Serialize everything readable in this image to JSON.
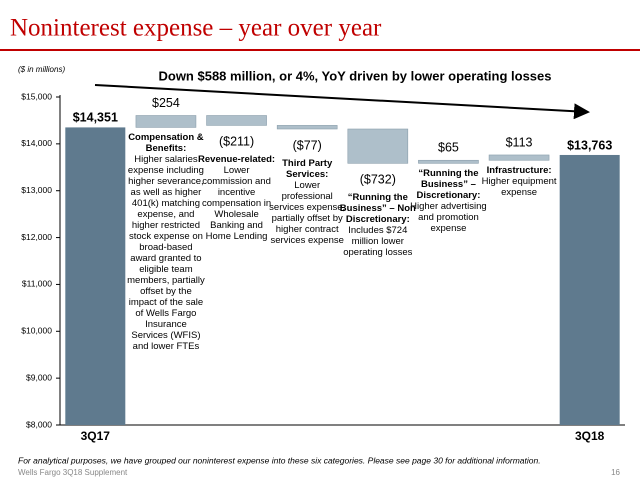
{
  "chart_data": {
    "type": "waterfall",
    "title": "Noninterest expense – year over year",
    "subtitle": "($ in millions)",
    "annotation": "Down $588 million, or 4%, YoY driven by lower operating losses",
    "categories": [
      "3Q17",
      "Compensation & Benefits:",
      "Revenue-related:",
      "Third Party Services:",
      "“Running the Business” – Non Discretionary:",
      "“Running the Business” – Discretionary:",
      "Infrastructure:",
      "3Q18"
    ],
    "descriptions": [
      null,
      "Higher salaries expense including higher severance, as well as higher 401(k) matching expense, and higher restricted stock expense on broad-based award granted to eligible team members, partially offset by the impact of the sale of Wells Fargo Insurance Services (WFIS) and lower FTEs",
      "Lower commission and incentive compensation in Wholesale Banking and Home Lending",
      "Lower professional services expense, partially offset by higher contract services expense",
      "Includes $724 million lower operating losses",
      "Higher advertising and promotion expense",
      "Higher equipment expense",
      null
    ],
    "measure": [
      "absolute",
      "relative",
      "relative",
      "relative",
      "relative",
      "relative",
      "relative",
      "absolute"
    ],
    "values": [
      14351,
      254,
      -211,
      -77,
      -732,
      65,
      113,
      13763
    ],
    "value_labels": [
      "$14,351",
      "$254",
      "($211)",
      "($77)",
      "($732)",
      "$65",
      "$113",
      "$13,763"
    ],
    "total_color": "#5f7a8e",
    "delta_color": "#aebfca",
    "ylim": [
      8000,
      15000
    ],
    "yticks": [
      {
        "value": 8000,
        "label": "$8,000"
      },
      {
        "value": 9000,
        "label": "$9,000"
      },
      {
        "value": 10000,
        "label": "$10,000"
      },
      {
        "value": 11000,
        "label": "$11,000"
      },
      {
        "value": 12000,
        "label": "$12,000"
      },
      {
        "value": 13000,
        "label": "$13,000"
      },
      {
        "value": 14000,
        "label": "$14,000"
      },
      {
        "value": 15000,
        "label": "$15,000"
      }
    ],
    "footnote": "For analytical purposes, we have grouped our noninterest expense into these six categories.  Please see page 30 for additional information."
  },
  "footer": {
    "source": "Wells Fargo 3Q18 Supplement",
    "page": "16"
  }
}
